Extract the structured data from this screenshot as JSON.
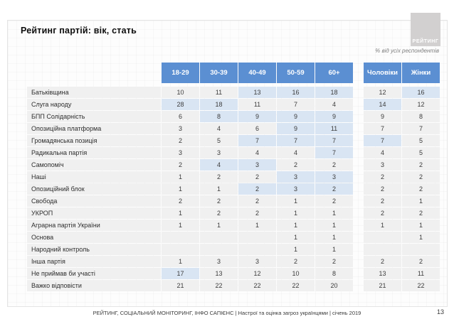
{
  "slide": {
    "title": "Рейтинг партій: вік, стать",
    "note": "% від усіх респондентів",
    "logo_text": "РЕЙТИНГ"
  },
  "footer": {
    "source_line": "РЕЙТИНГ, СОЦІАЛЬНИЙ МОНІТОРИНГ, ІНФО САПІЄНС | Настрої та оцінка загроз українцями | січень 2019",
    "page_number": "13"
  },
  "colors": {
    "header_blue": "#5b8fd2",
    "cell_grey": "#f0f0f0",
    "highlight_blue": "#d9e5f3",
    "logo_grey": "#d2d0d0"
  },
  "chart_data": {
    "type": "table",
    "title": "Рейтинг партій: вік, стать",
    "unit_note": "% від усіх респондентів",
    "columns": [
      "18-29",
      "30-39",
      "40-49",
      "50-59",
      "60+",
      "Чоловіки",
      "Жінки"
    ],
    "column_groups": [
      {
        "name": "вік",
        "columns": [
          "18-29",
          "30-39",
          "40-49",
          "50-59",
          "60+"
        ]
      },
      {
        "name": "стать",
        "columns": [
          "Чоловіки",
          "Жінки"
        ]
      }
    ],
    "highlight_meaning": "light-blue shaded cells emphasize higher values within the row",
    "rows": [
      {
        "label": "Батьківщина",
        "values": [
          "10",
          "11",
          "13",
          "16",
          "18",
          "12",
          "16"
        ],
        "highlighted": [
          false,
          false,
          true,
          true,
          true,
          false,
          true
        ]
      },
      {
        "label": "Слуга народу",
        "values": [
          "28",
          "18",
          "11",
          "7",
          "4",
          "14",
          "12"
        ],
        "highlighted": [
          true,
          true,
          false,
          false,
          false,
          true,
          false
        ]
      },
      {
        "label": "БПП Солідарність",
        "values": [
          "6",
          "8",
          "9",
          "9",
          "9",
          "9",
          "8"
        ],
        "highlighted": [
          false,
          true,
          true,
          true,
          true,
          false,
          false
        ]
      },
      {
        "label": "Опозиційна платформа",
        "values": [
          "3",
          "4",
          "6",
          "9",
          "11",
          "7",
          "7"
        ],
        "highlighted": [
          false,
          false,
          false,
          true,
          true,
          false,
          false
        ]
      },
      {
        "label": "Громадянська позиція",
        "values": [
          "2",
          "5",
          "7",
          "7",
          "7",
          "7",
          "5"
        ],
        "highlighted": [
          false,
          false,
          true,
          true,
          true,
          true,
          false
        ]
      },
      {
        "label": "Радикальна партія",
        "values": [
          "3",
          "3",
          "4",
          "4",
          "7",
          "4",
          "5"
        ],
        "highlighted": [
          false,
          false,
          false,
          false,
          true,
          false,
          false
        ]
      },
      {
        "label": "Самопоміч",
        "values": [
          "2",
          "4",
          "3",
          "2",
          "2",
          "3",
          "2"
        ],
        "highlighted": [
          false,
          true,
          true,
          false,
          false,
          false,
          false
        ]
      },
      {
        "label": "Наші",
        "values": [
          "1",
          "2",
          "2",
          "3",
          "3",
          "2",
          "2"
        ],
        "highlighted": [
          false,
          false,
          false,
          true,
          true,
          false,
          false
        ]
      },
      {
        "label": "Опозиційний блок",
        "values": [
          "1",
          "1",
          "2",
          "3",
          "2",
          "2",
          "2"
        ],
        "highlighted": [
          false,
          false,
          true,
          true,
          true,
          false,
          false
        ]
      },
      {
        "label": "Свобода",
        "values": [
          "2",
          "2",
          "2",
          "1",
          "2",
          "2",
          "1"
        ],
        "highlighted": [
          false,
          false,
          false,
          false,
          false,
          false,
          false
        ]
      },
      {
        "label": "УКРОП",
        "values": [
          "1",
          "2",
          "2",
          "1",
          "1",
          "2",
          "2"
        ],
        "highlighted": [
          false,
          false,
          false,
          false,
          false,
          false,
          false
        ]
      },
      {
        "label": "Аграрна партія України",
        "values": [
          "1",
          "1",
          "1",
          "1",
          "1",
          "1",
          "1"
        ],
        "highlighted": [
          false,
          false,
          false,
          false,
          false,
          false,
          false
        ]
      },
      {
        "label": "Основа",
        "values": [
          "",
          "",
          "",
          "1",
          "1",
          "",
          "1"
        ],
        "highlighted": [
          false,
          false,
          false,
          false,
          false,
          false,
          false
        ]
      },
      {
        "label": "Народний контроль",
        "values": [
          "",
          "",
          "",
          "1",
          "1",
          "",
          ""
        ],
        "highlighted": [
          false,
          false,
          false,
          false,
          false,
          false,
          false
        ]
      },
      {
        "label": "Інша партія",
        "values": [
          "1",
          "3",
          "3",
          "2",
          "2",
          "2",
          "2"
        ],
        "highlighted": [
          false,
          false,
          false,
          false,
          false,
          false,
          false
        ]
      },
      {
        "label": "Не приймав би участі",
        "values": [
          "17",
          "13",
          "12",
          "10",
          "8",
          "13",
          "11"
        ],
        "highlighted": [
          true,
          false,
          false,
          false,
          false,
          false,
          false
        ]
      },
      {
        "label": "Важко відповісти",
        "values": [
          "21",
          "22",
          "22",
          "22",
          "20",
          "21",
          "22"
        ],
        "highlighted": [
          false,
          false,
          false,
          false,
          false,
          false,
          false
        ]
      }
    ]
  }
}
